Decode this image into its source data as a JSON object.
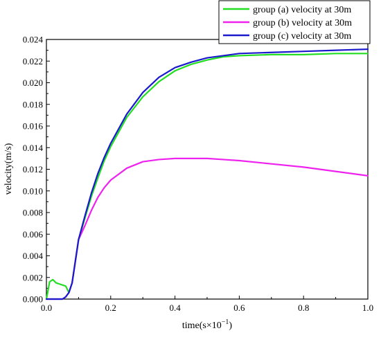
{
  "chart_data": {
    "type": "line",
    "xlabel": "time(s×10",
    "xlabel_exp": "−1",
    "xlabel_close": ")",
    "ylabel": "velocity(m/s)",
    "xlim": [
      0.0,
      1.0
    ],
    "ylim": [
      0.0,
      0.024
    ],
    "xticks": [
      "0.0",
      "0.2",
      "0.4",
      "0.6",
      "0.8",
      "1.0"
    ],
    "xtick_values": [
      0.0,
      0.2,
      0.4,
      0.6,
      0.8,
      1.0
    ],
    "yticks": [
      "0.000",
      "0.002",
      "0.004",
      "0.006",
      "0.008",
      "0.010",
      "0.012",
      "0.014",
      "0.016",
      "0.018",
      "0.020",
      "0.022",
      "0.024"
    ],
    "ytick_values": [
      0.0,
      0.002,
      0.004,
      0.006,
      0.008,
      0.01,
      0.012,
      0.014,
      0.016,
      0.018,
      0.02,
      0.022,
      0.024
    ],
    "grid": false,
    "legend_position": "top-right",
    "series": [
      {
        "name": "group (a) velocity at 30m",
        "color": "#22dd22",
        "x": [
          0.0,
          0.005,
          0.01,
          0.02,
          0.03,
          0.04,
          0.05,
          0.06,
          0.065,
          0.07,
          0.08,
          0.09,
          0.1,
          0.12,
          0.14,
          0.16,
          0.18,
          0.2,
          0.25,
          0.3,
          0.35,
          0.4,
          0.45,
          0.5,
          0.55,
          0.6,
          0.7,
          0.8,
          0.9,
          1.0
        ],
        "y": [
          0.0,
          0.0008,
          0.0016,
          0.0018,
          0.0015,
          0.0014,
          0.0013,
          0.0012,
          0.0009,
          0.0006,
          0.0015,
          0.0035,
          0.0055,
          0.0075,
          0.0095,
          0.0112,
          0.0128,
          0.0141,
          0.0168,
          0.0187,
          0.0201,
          0.0211,
          0.0217,
          0.0221,
          0.0224,
          0.0225,
          0.0226,
          0.0226,
          0.0227,
          0.0227
        ]
      },
      {
        "name": "group (b) velocity at 30m",
        "color": "#ee22ee",
        "x": [
          0.0,
          0.05,
          0.06,
          0.07,
          0.08,
          0.09,
          0.1,
          0.12,
          0.14,
          0.16,
          0.18,
          0.2,
          0.25,
          0.3,
          0.35,
          0.4,
          0.45,
          0.5,
          0.55,
          0.6,
          0.7,
          0.8,
          0.9,
          1.0
        ],
        "y": [
          0.0,
          0.0,
          0.0002,
          0.0006,
          0.0015,
          0.0035,
          0.0055,
          0.0068,
          0.0082,
          0.0094,
          0.0103,
          0.011,
          0.0121,
          0.0127,
          0.0129,
          0.013,
          0.013,
          0.013,
          0.0129,
          0.0128,
          0.0125,
          0.0122,
          0.0118,
          0.0114
        ]
      },
      {
        "name": "group (c) velocity at 30m",
        "color": "#1a1acc",
        "x": [
          0.0,
          0.05,
          0.06,
          0.07,
          0.08,
          0.09,
          0.1,
          0.12,
          0.14,
          0.16,
          0.18,
          0.2,
          0.25,
          0.3,
          0.35,
          0.4,
          0.45,
          0.5,
          0.55,
          0.6,
          0.7,
          0.8,
          0.9,
          1.0
        ],
        "y": [
          0.0,
          0.0,
          0.0002,
          0.0006,
          0.0015,
          0.0035,
          0.0055,
          0.0077,
          0.0098,
          0.0116,
          0.0131,
          0.0144,
          0.0171,
          0.0191,
          0.0205,
          0.0214,
          0.0219,
          0.0223,
          0.0225,
          0.0227,
          0.0228,
          0.0229,
          0.023,
          0.0231
        ]
      }
    ]
  }
}
